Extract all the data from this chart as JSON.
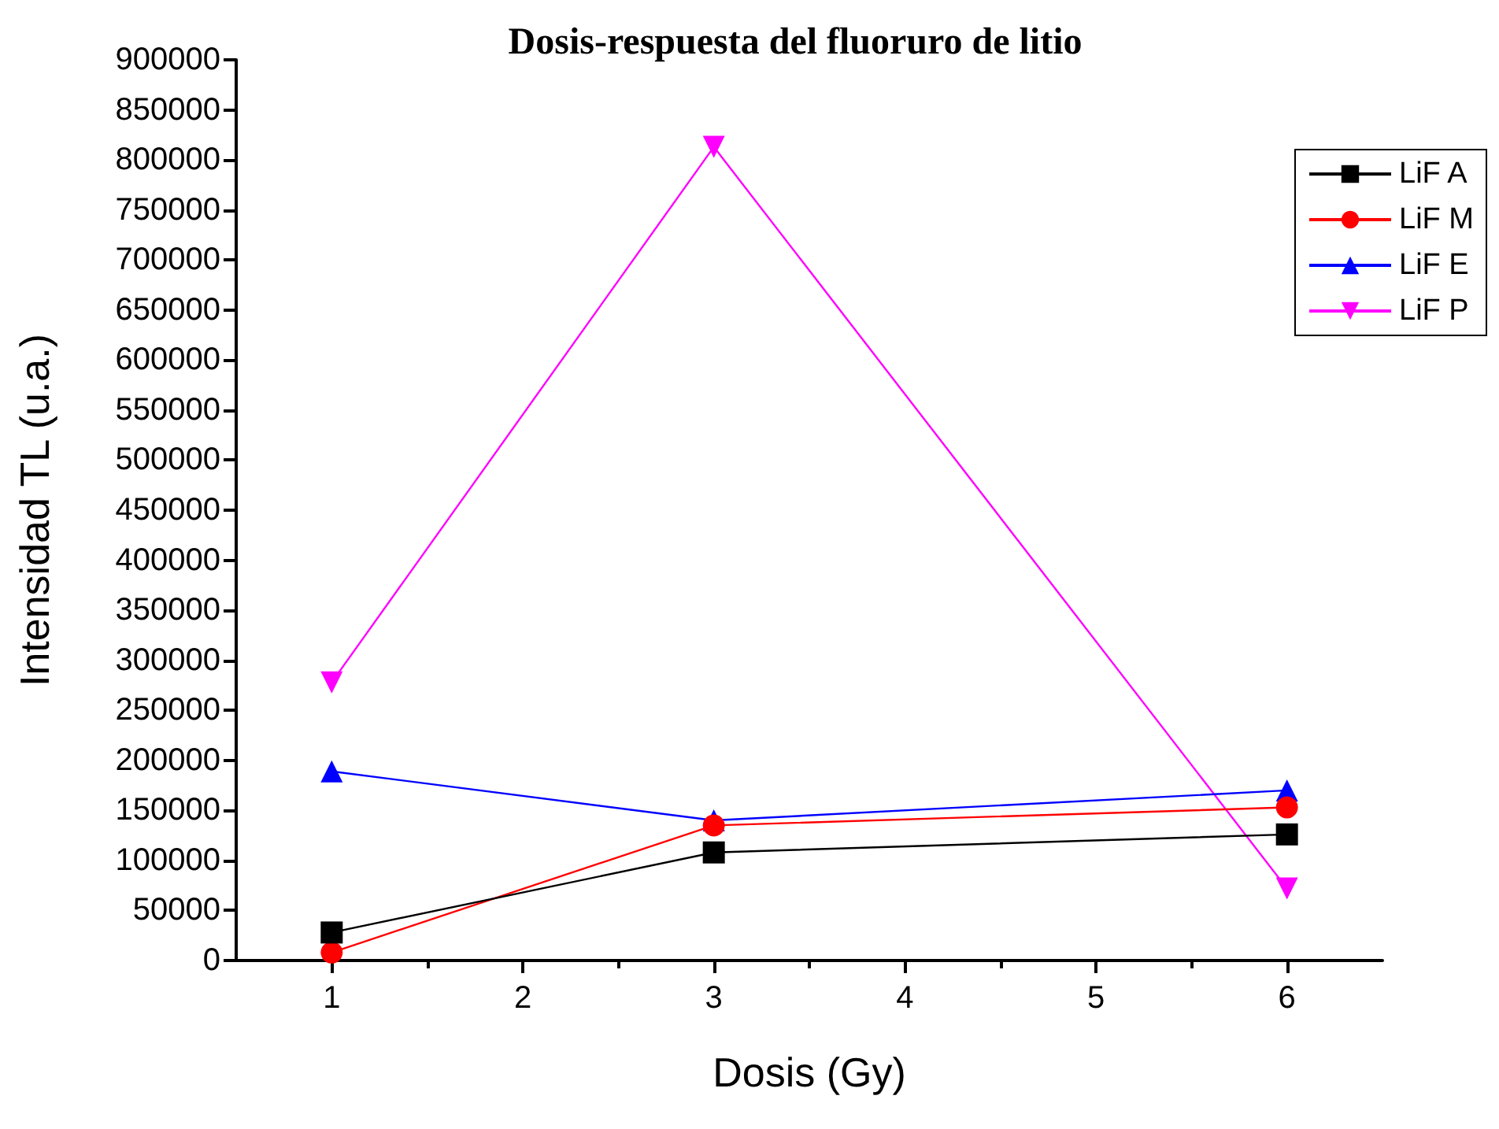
{
  "chart_data": {
    "type": "line",
    "title": "Dosis-respuesta del fluoruro de litio",
    "xlabel": "Dosis (Gy)",
    "ylabel": "Intensidad TL (u.a.)",
    "x": [
      1,
      3,
      6
    ],
    "series": [
      {
        "name": "LiF A",
        "color": "#000000",
        "marker": "square",
        "values": [
          28000,
          108000,
          126000
        ]
      },
      {
        "name": "LiF M",
        "color": "#ff0000",
        "marker": "circle",
        "values": [
          8000,
          135000,
          153000
        ]
      },
      {
        "name": "LiF E",
        "color": "#0000ff",
        "marker": "triangle",
        "values": [
          189000,
          140000,
          170000
        ]
      },
      {
        "name": "LiF P",
        "color": "#ff00ff",
        "marker": "triangle-down",
        "values": [
          278000,
          813000,
          72000
        ]
      }
    ],
    "xlim": [
      0.5,
      6.5
    ],
    "xticks": [
      1,
      2,
      3,
      4,
      5,
      6
    ],
    "ylim": [
      0,
      900000
    ],
    "yticks": [
      0,
      50000,
      100000,
      150000,
      200000,
      250000,
      300000,
      350000,
      400000,
      450000,
      500000,
      550000,
      600000,
      650000,
      700000,
      750000,
      800000,
      850000,
      900000
    ],
    "grid": false,
    "legend": "top right",
    "line_style": "solid"
  }
}
